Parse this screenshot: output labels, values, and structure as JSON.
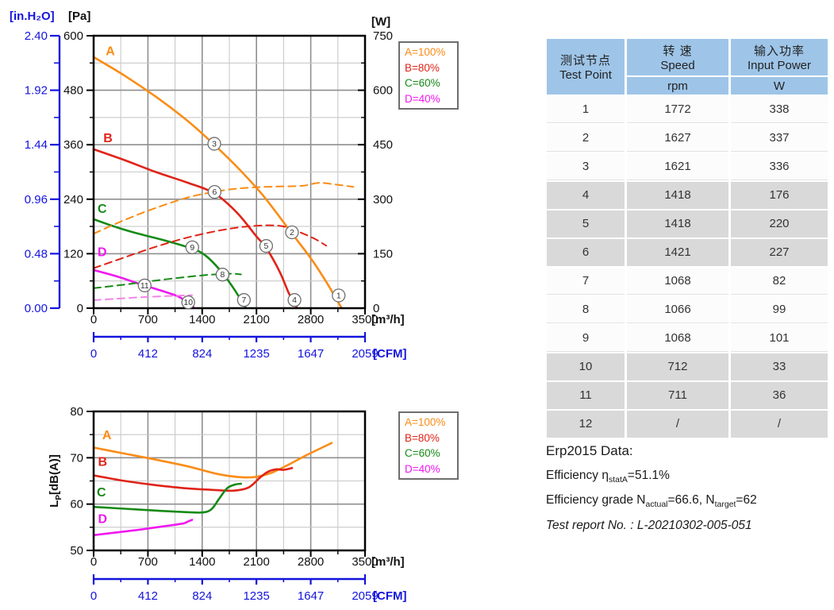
{
  "colors": {
    "A": "#FA8C16",
    "B": "#E02318",
    "C": "#168A16",
    "D": "#F018F0",
    "D_dash": "#F087E8",
    "blue_axis": "#1414DD",
    "grid_minor": "#C9C9C9",
    "grid_major": "#8F8F8F",
    "axis_black": "#000000",
    "marker_stroke": "#6E6E6E",
    "table_header_bg": "#9EC5E8",
    "table_row_shaded_bg": "#D9D9D9"
  },
  "chart_data": [
    {
      "type": "line",
      "name": "pressure-power-vs-airflow",
      "x_axis": {
        "label": "[m³/h]",
        "min": 0,
        "max": 3500,
        "ticks": [
          0,
          700,
          1400,
          2100,
          2800,
          3500
        ],
        "minor_step": 350
      },
      "x2_axis": {
        "label": "[CFM]",
        "max": 2059,
        "ticks": [
          0,
          412,
          824,
          1235,
          1647,
          2059
        ]
      },
      "y_axis_pa": {
        "label": "[Pa]",
        "min": 0,
        "max": 600,
        "ticks": [
          "600",
          "480",
          "360",
          "240",
          "120",
          "0"
        ],
        "minor_step": 60
      },
      "y_axis_inh2o": {
        "label": "[in.H₂O]",
        "min": 0,
        "max": 2.4,
        "ticks": [
          "2.40",
          "1.92",
          "1.44",
          "0.96",
          "0.48",
          "0.00"
        ]
      },
      "y_axis_w": {
        "label": "[W]",
        "min": 0,
        "max": 750,
        "ticks": [
          "750",
          "600",
          "450",
          "300",
          "150",
          "0"
        ],
        "minor_step": 75
      },
      "grid": {
        "x_minor": 350,
        "x_major": 700,
        "y_minor_pa": 60,
        "y_major_pa": 120
      },
      "legend": [
        {
          "label": "A=100%",
          "color_key": "A"
        },
        {
          "label": "B=80%",
          "color_key": "B"
        },
        {
          "label": "C=60%",
          "color_key": "C"
        },
        {
          "label": "D=40%",
          "color_key": "D"
        }
      ],
      "curve_labels": [
        {
          "text": "A",
          "x": 215,
          "y": 566,
          "color_key": "A"
        },
        {
          "text": "B",
          "x": 185,
          "y": 374,
          "color_key": "B"
        },
        {
          "text": "C",
          "x": 110,
          "y": 219,
          "color_key": "C"
        },
        {
          "text": "D",
          "x": 110,
          "y": 123,
          "color_key": "D"
        }
      ],
      "series": [
        {
          "name": "A-pressure",
          "color_key": "A",
          "dash": false,
          "axis": "pa",
          "points": [
            [
              0,
              553
            ],
            [
              400,
              512
            ],
            [
              800,
              466
            ],
            [
              1200,
              414
            ],
            [
              1556,
              360
            ],
            [
              1900,
              302
            ],
            [
              2200,
              245
            ],
            [
              2560,
              164
            ],
            [
              2800,
              110
            ],
            [
              3000,
              58
            ],
            [
              3192,
              2
            ]
          ]
        },
        {
          "name": "B-pressure",
          "color_key": "B",
          "dash": false,
          "axis": "pa",
          "points": [
            [
              0,
              350
            ],
            [
              400,
              326
            ],
            [
              800,
              300
            ],
            [
              1200,
              277
            ],
            [
              1556,
              253
            ],
            [
              1850,
              210
            ],
            [
              2100,
              158
            ],
            [
              2225,
              133
            ],
            [
              2400,
              80
            ],
            [
              2520,
              32
            ],
            [
              2620,
              2
            ]
          ]
        },
        {
          "name": "C-pressure",
          "color_key": "C",
          "dash": false,
          "axis": "pa",
          "points": [
            [
              0,
              196
            ],
            [
              300,
              178
            ],
            [
              600,
              163
            ],
            [
              900,
              150
            ],
            [
              1270,
              131
            ],
            [
              1450,
              115
            ],
            [
              1650,
              80
            ],
            [
              1800,
              45
            ],
            [
              1930,
              10
            ],
            [
              1960,
              2
            ]
          ]
        },
        {
          "name": "D-pressure",
          "color_key": "D",
          "dash": false,
          "axis": "pa",
          "points": [
            [
              0,
              84
            ],
            [
              300,
              70
            ],
            [
              600,
              53
            ],
            [
              900,
              37
            ],
            [
              1100,
              25
            ],
            [
              1250,
              8
            ],
            [
              1290,
              2
            ]
          ]
        },
        {
          "name": "A-power",
          "color_key": "A",
          "dash": true,
          "axis": "w",
          "points": [
            [
              0,
              205
            ],
            [
              400,
              243
            ],
            [
              800,
              276
            ],
            [
              1200,
              304
            ],
            [
              1500,
              318
            ],
            [
              1800,
              328
            ],
            [
              2100,
              333
            ],
            [
              2400,
              335
            ],
            [
              2700,
              337
            ],
            [
              2900,
              345
            ],
            [
              3100,
              341
            ],
            [
              3350,
              334
            ]
          ]
        },
        {
          "name": "B-power",
          "color_key": "B",
          "dash": true,
          "axis": "w",
          "points": [
            [
              0,
              110
            ],
            [
              400,
              140
            ],
            [
              800,
              169
            ],
            [
              1200,
              194
            ],
            [
              1600,
              213
            ],
            [
              1900,
              223
            ],
            [
              2200,
              228
            ],
            [
              2450,
              225
            ],
            [
              2650,
              210
            ],
            [
              2850,
              191
            ],
            [
              3000,
              172
            ]
          ]
        },
        {
          "name": "C-power",
          "color_key": "C",
          "dash": true,
          "axis": "w",
          "points": [
            [
              0,
              55
            ],
            [
              400,
              65
            ],
            [
              800,
              76
            ],
            [
              1200,
              86
            ],
            [
              1500,
              92
            ],
            [
              1750,
              95
            ],
            [
              1900,
              93
            ]
          ]
        },
        {
          "name": "D-power",
          "color_key": "D_dash",
          "dash": true,
          "axis": "w",
          "points": [
            [
              0,
              22
            ],
            [
              300,
              26
            ],
            [
              600,
              30
            ],
            [
              900,
              33
            ],
            [
              1150,
              35
            ],
            [
              1270,
              36
            ]
          ]
        }
      ],
      "markers": [
        {
          "n": "1",
          "x": 3160,
          "y": 28
        },
        {
          "n": "2",
          "x": 2558,
          "y": 167
        },
        {
          "n": "3",
          "x": 1556,
          "y": 362
        },
        {
          "n": "4",
          "x": 2590,
          "y": 18
        },
        {
          "n": "5",
          "x": 2225,
          "y": 137
        },
        {
          "n": "6",
          "x": 1560,
          "y": 256
        },
        {
          "n": "7",
          "x": 1938,
          "y": 18
        },
        {
          "n": "8",
          "x": 1662,
          "y": 74
        },
        {
          "n": "9",
          "x": 1272,
          "y": 134
        },
        {
          "n": "10",
          "x": 1220,
          "y": 13
        },
        {
          "n": "11",
          "x": 658,
          "y": 50
        }
      ]
    },
    {
      "type": "line",
      "name": "noise-vs-airflow",
      "x_axis": {
        "label": "[m³/h]",
        "min": 0,
        "max": 3500,
        "ticks": [
          0,
          700,
          1400,
          2100,
          2800,
          3500
        ],
        "minor_step": 350
      },
      "x2_axis": {
        "label": "[CFM]",
        "max": 2059,
        "ticks": [
          0,
          412,
          824,
          1235,
          1647,
          2059
        ]
      },
      "y_axis_db": {
        "label_parts": {
          "pre": "L",
          "sub": "P",
          "post": "[dB(A)]"
        },
        "min": 50,
        "max": 80,
        "ticks": [
          "80",
          "70",
          "60",
          "50"
        ],
        "minor_step": 5
      },
      "grid": {
        "x_minor": 350,
        "x_major": 700,
        "y_minor_db": 5,
        "y_major_db": 10
      },
      "legend": [
        {
          "label": "A=100%",
          "color_key": "A"
        },
        {
          "label": "B=80%",
          "color_key": "B"
        },
        {
          "label": "C=60%",
          "color_key": "C"
        },
        {
          "label": "D=40%",
          "color_key": "D"
        }
      ],
      "curve_labels": [
        {
          "text": "A",
          "x": 170,
          "y": 74.9,
          "color_key": "A"
        },
        {
          "text": "B",
          "x": 115,
          "y": 69.1,
          "color_key": "B"
        },
        {
          "text": "C",
          "x": 100,
          "y": 62.5,
          "color_key": "C"
        },
        {
          "text": "D",
          "x": 115,
          "y": 56.8,
          "color_key": "D"
        }
      ],
      "series": [
        {
          "name": "A-noise",
          "color_key": "A",
          "dash": false,
          "axis": "db",
          "points": [
            [
              0,
              72.2
            ],
            [
              400,
              70.9
            ],
            [
              800,
              69.6
            ],
            [
              1200,
              68.2
            ],
            [
              1600,
              66.5
            ],
            [
              1900,
              65.8
            ],
            [
              2100,
              65.9
            ],
            [
              2300,
              66.8
            ],
            [
              2500,
              68.4
            ],
            [
              2750,
              70.6
            ],
            [
              3070,
              73.2
            ]
          ]
        },
        {
          "name": "B-noise",
          "color_key": "B",
          "dash": false,
          "axis": "db",
          "points": [
            [
              0,
              66.2
            ],
            [
              400,
              65.0
            ],
            [
              800,
              64.1
            ],
            [
              1200,
              63.4
            ],
            [
              1500,
              63.1
            ],
            [
              1800,
              62.9
            ],
            [
              2000,
              63.6
            ],
            [
              2150,
              65.8
            ],
            [
              2250,
              67.0
            ],
            [
              2350,
              67.5
            ],
            [
              2450,
              67.4
            ],
            [
              2560,
              67.8
            ]
          ]
        },
        {
          "name": "C-noise",
          "color_key": "C",
          "dash": false,
          "axis": "db",
          "points": [
            [
              0,
              59.4
            ],
            [
              400,
              59.0
            ],
            [
              800,
              58.6
            ],
            [
              1150,
              58.3
            ],
            [
              1400,
              58.2
            ],
            [
              1520,
              58.9
            ],
            [
              1620,
              61.2
            ],
            [
              1720,
              63.4
            ],
            [
              1820,
              64.2
            ],
            [
              1900,
              64.4
            ]
          ]
        },
        {
          "name": "D-noise",
          "color_key": "D",
          "dash": false,
          "axis": "db",
          "points": [
            [
              0,
              53.3
            ],
            [
              300,
              53.9
            ],
            [
              600,
              54.5
            ],
            [
              900,
              55.2
            ],
            [
              1150,
              55.8
            ],
            [
              1210,
              56.2
            ],
            [
              1270,
              56.6
            ]
          ]
        }
      ]
    }
  ],
  "table": {
    "header": {
      "test_point_cn": "测试节点",
      "test_point_en": "Test Point",
      "speed_cn": "转 速",
      "speed_en": "Speed",
      "speed_unit": "rpm",
      "power_cn": "输入功率",
      "power_en": "Input Power",
      "power_unit": "W"
    },
    "rows": [
      {
        "point": "1",
        "rpm": "1772",
        "power": "338",
        "shaded": false
      },
      {
        "point": "2",
        "rpm": "1627",
        "power": "337",
        "shaded": false
      },
      {
        "point": "3",
        "rpm": "1621",
        "power": "336",
        "shaded": false
      },
      {
        "point": "4",
        "rpm": "1418",
        "power": "176",
        "shaded": true
      },
      {
        "point": "5",
        "rpm": "1418",
        "power": "220",
        "shaded": true
      },
      {
        "point": "6",
        "rpm": "1421",
        "power": "227",
        "shaded": true
      },
      {
        "point": "7",
        "rpm": "1068",
        "power": "82",
        "shaded": false
      },
      {
        "point": "8",
        "rpm": "1066",
        "power": "99",
        "shaded": false
      },
      {
        "point": "9",
        "rpm": "1068",
        "power": "101",
        "shaded": false
      },
      {
        "point": "10",
        "rpm": "712",
        "power": "33",
        "shaded": true
      },
      {
        "point": "11",
        "rpm": "711",
        "power": "36",
        "shaded": true
      },
      {
        "point": "12",
        "rpm": "/",
        "power": "/",
        "shaded": true
      }
    ]
  },
  "erp": {
    "lines": [
      {
        "name": "erp-title",
        "cls": "erp-title",
        "parts": [
          {
            "t": "Erp2015  Data:"
          }
        ]
      },
      {
        "name": "erp-efficiency",
        "cls": "",
        "parts": [
          {
            "t": "Efficiency η"
          },
          {
            "s": "statA"
          },
          {
            "t": "=51.1%"
          }
        ]
      },
      {
        "name": "erp-grade",
        "cls": "",
        "parts": [
          {
            "t": "Efficiency grade N"
          },
          {
            "s": "actual"
          },
          {
            "t": "=66.6, N"
          },
          {
            "s": "target"
          },
          {
            "t": "=62"
          }
        ]
      },
      {
        "name": "erp-report",
        "cls": "italic",
        "parts": [
          {
            "t": "Test report No. : L-20210302-005-051"
          }
        ]
      }
    ]
  }
}
